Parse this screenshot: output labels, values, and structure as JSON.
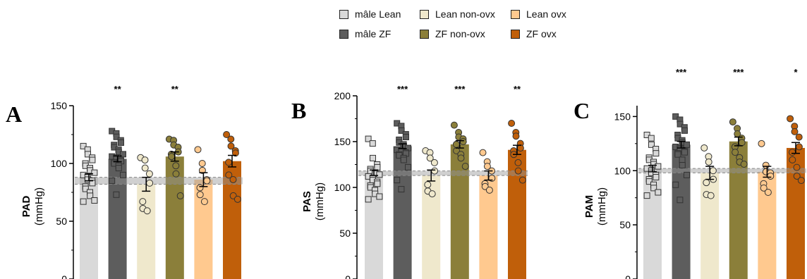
{
  "legend": [
    {
      "label": "mâle Lean",
      "color": "#d9d9d9"
    },
    {
      "label": "Lean non-ovx",
      "color": "#efe8cc"
    },
    {
      "label": "Lean ovx",
      "color": "#ffc98f"
    },
    {
      "label": "mâle ZF",
      "color": "#5d5d5d"
    },
    {
      "label": "ZF non-ovx",
      "color": "#8b7f3a"
    },
    {
      "label": "ZF ovx",
      "color": "#c05f0a"
    }
  ],
  "chart_data": [
    {
      "type": "bar",
      "panel_letter": "A",
      "ylabel_bold": "PAD",
      "ylabel_unit": "(mmHg)",
      "ylim": [
        0,
        150
      ],
      "yticks": [
        "0",
        "50",
        "100",
        "150"
      ],
      "categories": [
        "mâle Lean",
        "mâle ZF",
        "Lean non-ovx",
        "ZF non-ovx",
        "Lean ovx",
        "ZF ovx"
      ],
      "values": [
        88,
        104,
        82,
        106,
        86,
        102
      ],
      "sem": [
        3,
        2.5,
        6,
        4,
        6,
        5
      ],
      "significance": [
        "",
        "**",
        "",
        "**",
        "",
        ""
      ],
      "reference_band": [
        82,
        88
      ],
      "points": [
        [
          115,
          112,
          108,
          105,
          103,
          100,
          98,
          96,
          94,
          92,
          90,
          88,
          86,
          85,
          83,
          80,
          78,
          75,
          72,
          68,
          67
        ],
        [
          128,
          126,
          123,
          120,
          118,
          116,
          114,
          112,
          110,
          108,
          106,
          105,
          104,
          103,
          102,
          101,
          100,
          98,
          96,
          90,
          85,
          73
        ],
        [
          105,
          103,
          96,
          91,
          83,
          67,
          61,
          59
        ],
        [
          121,
          120,
          116,
          114,
          110,
          108,
          106,
          98,
          91,
          72
        ],
        [
          112,
          100,
          94,
          86,
          85,
          79,
          73,
          67
        ],
        [
          125,
          121,
          115,
          111,
          109,
          101,
          90,
          86,
          72,
          69
        ]
      ]
    },
    {
      "type": "bar",
      "panel_letter": "B",
      "ylabel_bold": "PAS",
      "ylabel_unit": "(mmHg)",
      "ylim": [
        0,
        200
      ],
      "yticks": [
        "0",
        "50",
        "100",
        "150",
        "200"
      ],
      "categories": [
        "mâle Lean",
        "mâle ZF",
        "Lean non-ovx",
        "ZF non-ovx",
        "Lean ovx",
        "ZF ovx"
      ],
      "values": [
        116,
        145,
        113,
        147,
        113,
        141
      ],
      "sem": [
        3,
        2.5,
        6,
        4,
        5,
        5
      ],
      "significance": [
        "",
        "***",
        "",
        "***",
        "",
        "**"
      ],
      "reference_band": [
        113,
        118
      ],
      "points": [
        [
          153,
          148,
          132,
          125,
          122,
          120,
          118,
          116,
          115,
          114,
          112,
          110,
          108,
          106,
          104,
          102,
          100,
          97,
          93,
          90,
          87
        ],
        [
          170,
          167,
          162,
          158,
          155,
          152,
          149,
          147,
          145,
          143,
          141,
          140,
          139,
          138,
          137,
          136,
          135,
          132,
          130,
          122,
          108,
          98
        ],
        [
          140,
          138,
          132,
          127,
          118,
          103,
          96,
          93
        ],
        [
          168,
          160,
          155,
          153,
          150,
          147,
          140,
          136,
          132,
          123
        ],
        [
          138,
          128,
          123,
          118,
          110,
          104,
          101,
          97
        ],
        [
          170,
          160,
          156,
          148,
          143,
          140,
          136,
          127,
          118,
          108
        ]
      ]
    },
    {
      "type": "bar",
      "panel_letter": "C",
      "ylabel_bold": "PAM",
      "ylabel_unit": "(mmHg)",
      "ylim": [
        0,
        160
      ],
      "yticks": [
        "0",
        "50",
        "100",
        "150"
      ],
      "categories": [
        "mâle Lean",
        "mâle ZF",
        "Lean non-ovx",
        "ZF non-ovx",
        "Lean ovx",
        "ZF ovx"
      ],
      "values": [
        102,
        124,
        98,
        127,
        99,
        121
      ],
      "sem": [
        3,
        3,
        6,
        4,
        5,
        5
      ],
      "significance": [
        "",
        "***",
        "",
        "***",
        "",
        "*"
      ],
      "reference_band": [
        98,
        102
      ],
      "points": [
        [
          133,
          130,
          124,
          120,
          116,
          112,
          110,
          108,
          106,
          104,
          102,
          100,
          98,
          96,
          94,
          92,
          90,
          87,
          84,
          80,
          77
        ],
        [
          150,
          147,
          143,
          140,
          137,
          133,
          130,
          128,
          126,
          124,
          122,
          121,
          120,
          118,
          117,
          116,
          115,
          110,
          105,
          96,
          87,
          73
        ],
        [
          121,
          113,
          108,
          100,
          92,
          89,
          78,
          77
        ],
        [
          145,
          139,
          134,
          130,
          126,
          122,
          117,
          112,
          108,
          106
        ],
        [
          125,
          105,
          99,
          98,
          95,
          88,
          84,
          80
        ],
        [
          148,
          141,
          136,
          131,
          122,
          117,
          110,
          103,
          95,
          91
        ]
      ]
    }
  ]
}
